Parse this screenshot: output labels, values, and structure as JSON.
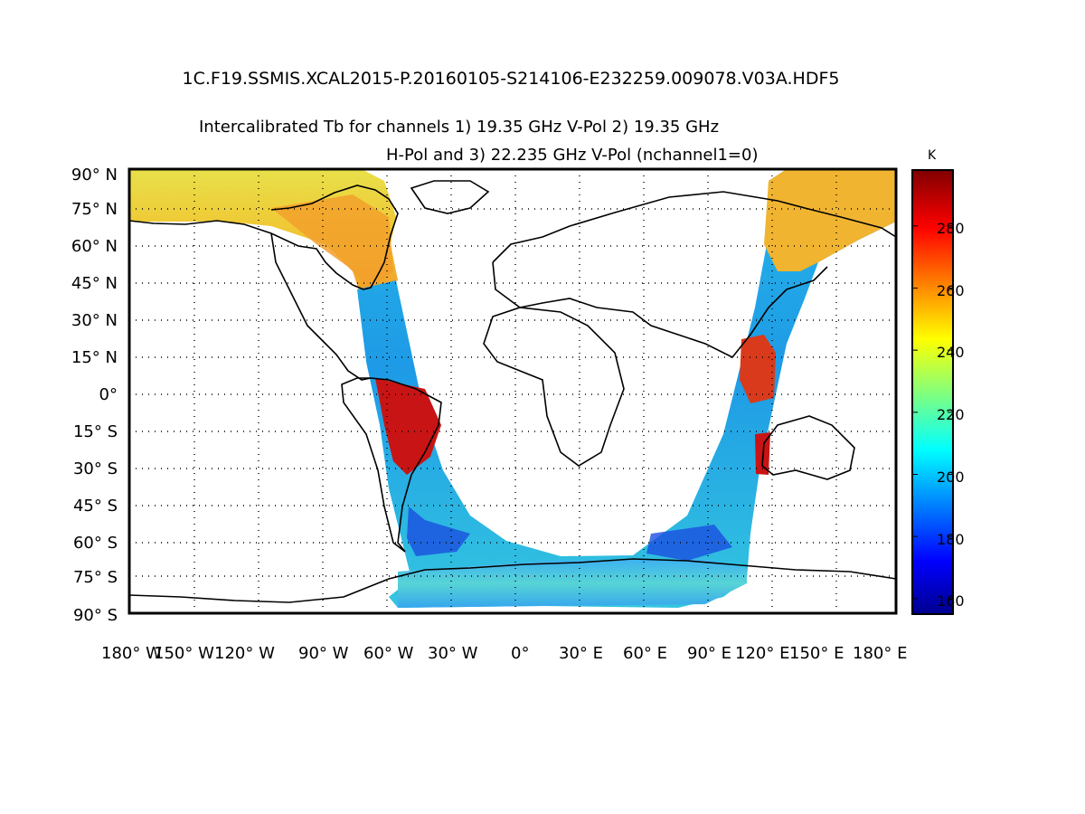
{
  "file_title": "1C.F19.SSMIS.XCAL2015-P.20160105-S214106-E232259.009078.V03A.HDF5",
  "title_line1": "Intercalibrated Tb for channels 1) 19.35 GHz V-Pol 2) 19.35 GHz",
  "title_line2": "H-Pol and 3) 22.235 GHz V-Pol (nchannel1=0)",
  "lat_labels": [
    "90° N",
    "75° N",
    "60° N",
    "45° N",
    "30° N",
    "15° N",
    "0°",
    "15° S",
    "30° S",
    "45° S",
    "60° S",
    "75° S",
    "90° S"
  ],
  "lon_labels": [
    "180° W",
    "150° W",
    "120° W",
    "90° W",
    "60° W",
    "30° W",
    "0°",
    "30° E",
    "60° E",
    "90° E",
    "120° E",
    "150° E",
    "180° E"
  ],
  "colorbar": {
    "unit": "K",
    "range": [
      155,
      298
    ],
    "ticks": [
      "280",
      "260",
      "240",
      "220",
      "200",
      "180",
      "160"
    ],
    "tick_values": [
      280,
      260,
      240,
      220,
      200,
      180,
      160
    ],
    "colormap": "jet"
  },
  "projection": "equirectangular",
  "lon_range": [
    -180,
    180
  ],
  "lat_range": [
    -90,
    90
  ]
}
